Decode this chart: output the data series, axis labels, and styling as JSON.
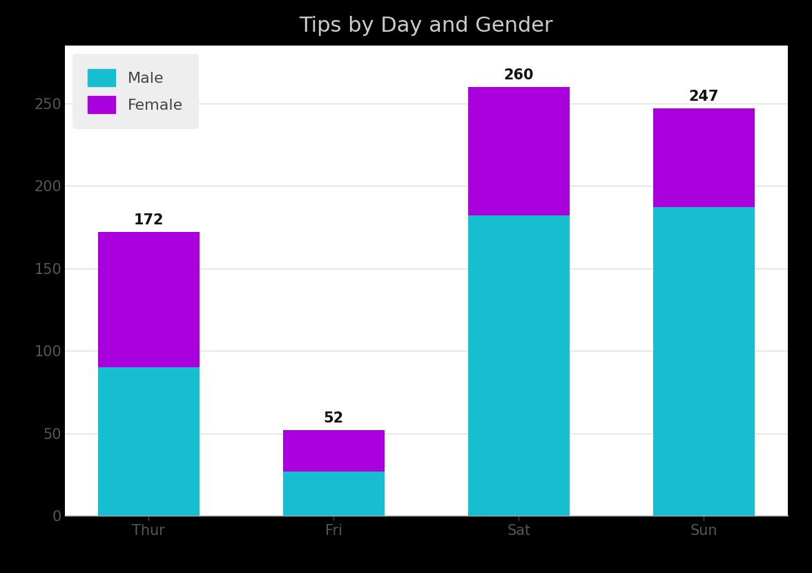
{
  "title": "Tips by Day and Gender",
  "categories": [
    "Thur",
    "Fri",
    "Sat",
    "Sun"
  ],
  "male_values": [
    90,
    27,
    182,
    187
  ],
  "female_values": [
    82,
    25,
    78,
    60
  ],
  "totals": [
    172,
    52,
    260,
    247
  ],
  "male_color": "#17becf",
  "female_color": "#aa00dd",
  "bg_color": "#000000",
  "plot_bg_color": "#ffffff",
  "title_color": "#cccccc",
  "label_color": "#111111",
  "legend_bg": "#eeeeee",
  "title_fontsize": 22,
  "label_fontsize": 16,
  "total_fontsize": 15,
  "tick_fontsize": 15,
  "ylim": [
    0,
    285
  ],
  "yticks": [
    0,
    50,
    100,
    150,
    200,
    250
  ],
  "bar_width": 0.55
}
